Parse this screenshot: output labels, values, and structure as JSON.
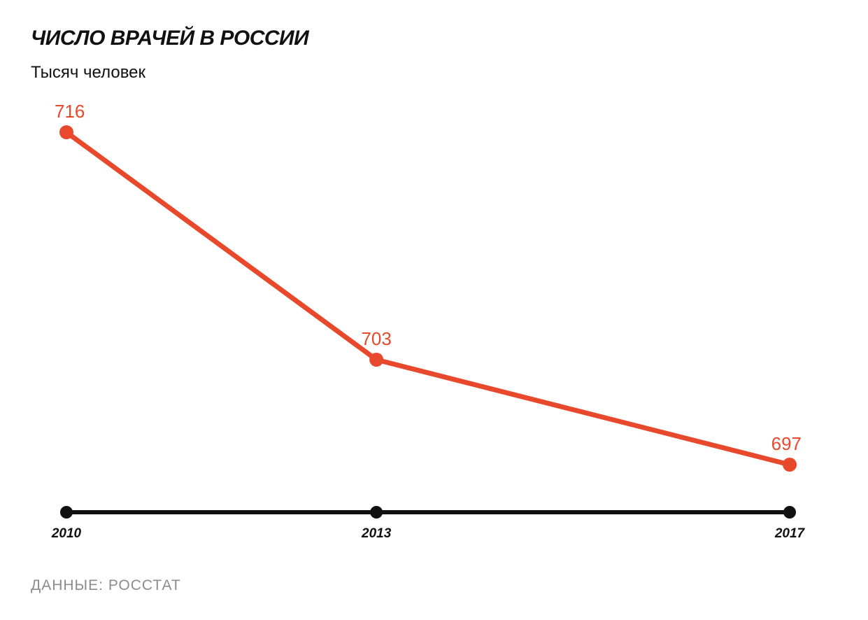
{
  "title": "ЧИСЛО ВРАЧЕЙ В РОССИИ",
  "subtitle": "Тысяч человек",
  "source": "ДАННЫЕ: РОССТАТ",
  "colors": {
    "series": "#e8492c",
    "axis": "#111111",
    "source_text": "#8c8c8c"
  },
  "chart_data": {
    "type": "line",
    "title": "ЧИСЛО ВРАЧЕЙ В РОССИИ",
    "subtitle": "Тысяч человек",
    "x": [
      "2010",
      "2013",
      "2017"
    ],
    "series": [
      {
        "values": [
          716,
          703,
          697
        ]
      }
    ],
    "data_labels": [
      "716",
      "703",
      "697"
    ],
    "x_scale": "linear-years",
    "grid": false,
    "legend": "none"
  }
}
